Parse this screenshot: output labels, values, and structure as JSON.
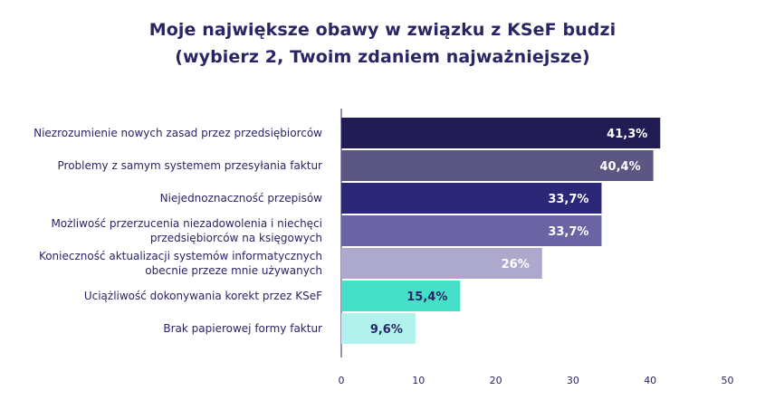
{
  "chart_data": {
    "type": "bar",
    "orientation": "horizontal",
    "title_lines": [
      "Moje największe obawy w związku z KSeF budzi",
      "(wybierz 2, Twoim zdaniem najważniejsze)"
    ],
    "categories": [
      [
        "Niezrozumienie nowych zasad przez przedsiębiorców"
      ],
      [
        "Problemy z samym systemem przesyłania faktur"
      ],
      [
        "Niejednoznaczność przepisów"
      ],
      [
        "Możliwość przerzucenia niezadowolenia  i  niechęci",
        "przedsiębiorców na księgowych"
      ],
      [
        "Konieczność aktualizacji systemów informatycznych",
        "obecnie przeze mnie używanych"
      ],
      [
        "Uciążliwość dokonywania korekt przez KSeF"
      ],
      [
        "Brak papierowej formy faktur"
      ]
    ],
    "values": [
      41.3,
      40.4,
      33.7,
      33.7,
      26,
      15.4,
      9.6
    ],
    "value_labels": [
      "41,3%",
      "40,4%",
      "33,7%",
      "33,7%",
      "26%",
      "15,4%",
      "9,6%"
    ],
    "bar_colors": [
      "#221c55",
      "#5b5682",
      "#2c2777",
      "#6a64a4",
      "#ada9cd",
      "#46e0c9",
      "#b2f2ec"
    ],
    "label_colors": [
      "#ffffff",
      "#ffffff",
      "#ffffff",
      "#ffffff",
      "#ffffff",
      "#2a2565",
      "#2a2565"
    ],
    "x_ticks": [
      0,
      10,
      20,
      30,
      40,
      50
    ],
    "xlim": [
      0,
      50
    ],
    "xlabel": "",
    "ylabel": "",
    "grid": false,
    "legend": "none"
  }
}
